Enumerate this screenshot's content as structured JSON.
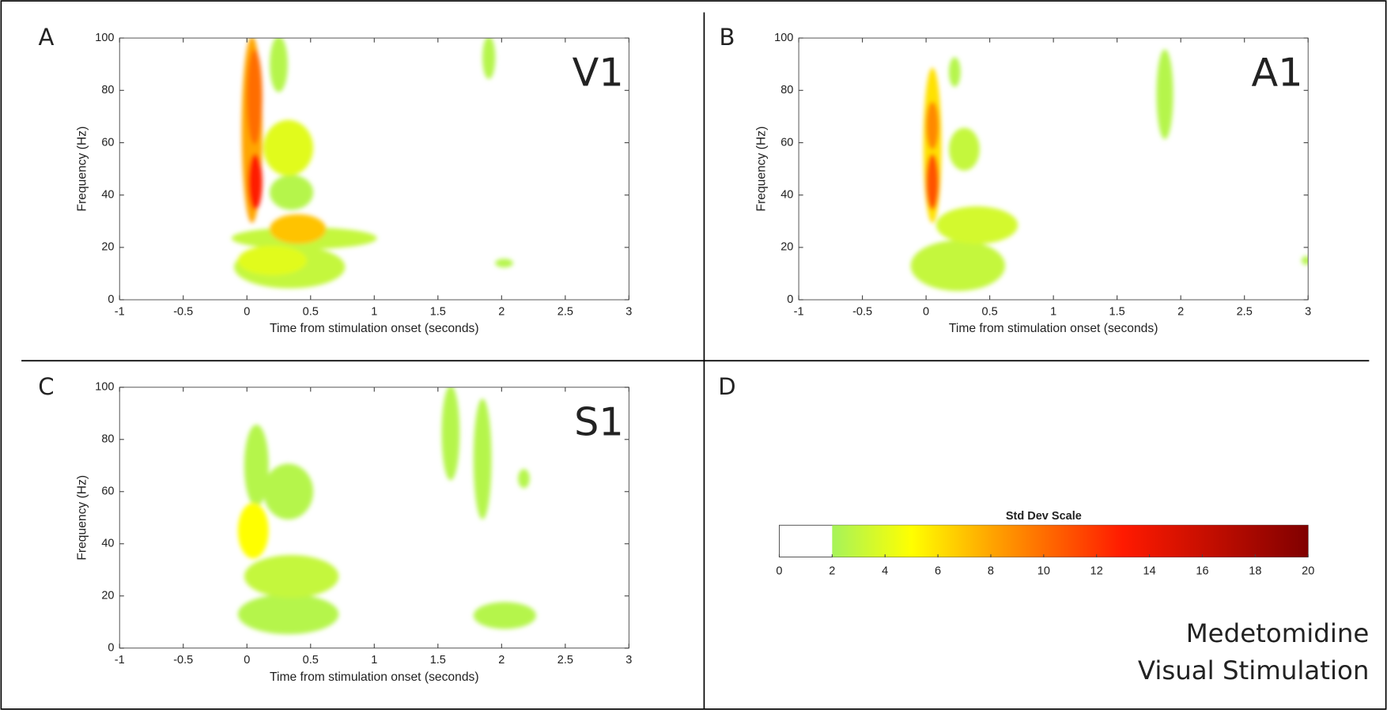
{
  "figure": {
    "note_lines": [
      "Medetomidine",
      "Visual Stimulation"
    ]
  },
  "colormap": [
    {
      "value": 2,
      "color": "#a6f35a"
    },
    {
      "value": 5,
      "color": "#ffff00"
    },
    {
      "value": 8,
      "color": "#ffa500"
    },
    {
      "value": 13,
      "color": "#ff1a00"
    },
    {
      "value": 20,
      "color": "#800000"
    }
  ],
  "chart_data": [
    {
      "type": "heatmap",
      "panel": "A",
      "region": "V1",
      "x_label": "Time from stimulation onset (seconds)",
      "y_label": "Frequency (Hz)",
      "xlim": [
        -1,
        3
      ],
      "ylim": [
        0,
        100
      ],
      "xticks": [
        -1,
        -0.5,
        0,
        0.5,
        1,
        1.5,
        2,
        2.5,
        3
      ],
      "yticks": [
        0,
        20,
        40,
        60,
        80,
        100
      ],
      "cells": [
        {
          "x": [
            -0.08,
            0.75
          ],
          "y": [
            5,
            20
          ],
          "value": 3
        },
        {
          "x": [
            -0.1,
            1.0
          ],
          "y": [
            20,
            27
          ],
          "value": 3
        },
        {
          "x": [
            0.2,
            0.5
          ],
          "y": [
            35,
            47
          ],
          "value": 2.5
        },
        {
          "x": [
            0.2,
            0.3
          ],
          "y": [
            80,
            100
          ],
          "value": 2.5
        },
        {
          "x": [
            1.87,
            1.93
          ],
          "y": [
            85,
            100
          ],
          "value": 2.5
        },
        {
          "x": [
            1.97,
            2.07
          ],
          "y": [
            13,
            15
          ],
          "value": 2.5
        },
        {
          "x": [
            -0.05,
            0.45
          ],
          "y": [
            10,
            20
          ],
          "value": 4
        },
        {
          "x": [
            0.15,
            0.5
          ],
          "y": [
            48,
            68
          ],
          "value": 4
        },
        {
          "x": [
            0.2,
            0.6
          ],
          "y": [
            22,
            32
          ],
          "value": 7
        },
        {
          "x": [
            -0.02,
            0.1
          ],
          "y": [
            30,
            100
          ],
          "value": 8
        },
        {
          "x": [
            0.02,
            0.1
          ],
          "y": [
            60,
            95
          ],
          "value": 10
        },
        {
          "x": [
            0.03,
            0.1
          ],
          "y": [
            35,
            55
          ],
          "value": 13
        }
      ]
    },
    {
      "type": "heatmap",
      "panel": "B",
      "region": "A1",
      "x_label": "Time from stimulation onset (seconds)",
      "y_label": "Frequency (Hz)",
      "xlim": [
        -1,
        3
      ],
      "ylim": [
        0,
        100
      ],
      "xticks": [
        -1,
        -0.5,
        0,
        0.5,
        1,
        1.5,
        2,
        2.5,
        3
      ],
      "yticks": [
        0,
        20,
        40,
        60,
        80,
        100
      ],
      "cells": [
        {
          "x": [
            -0.1,
            0.6
          ],
          "y": [
            4,
            22
          ],
          "value": 3
        },
        {
          "x": [
            0.1,
            0.7
          ],
          "y": [
            22,
            35
          ],
          "value": 3.5
        },
        {
          "x": [
            0.2,
            0.4
          ],
          "y": [
            50,
            65
          ],
          "value": 3
        },
        {
          "x": [
            0.2,
            0.25
          ],
          "y": [
            82,
            92
          ],
          "value": 2.5
        },
        {
          "x": [
            1.83,
            1.92
          ],
          "y": [
            62,
            95
          ],
          "value": 2.5
        },
        {
          "x": [
            2.97,
            3
          ],
          "y": [
            14,
            16
          ],
          "value": 2.5
        },
        {
          "x": [
            0,
            0.1
          ],
          "y": [
            30,
            88
          ],
          "value": 6
        },
        {
          "x": [
            0.02,
            0.08
          ],
          "y": [
            58,
            75
          ],
          "value": 9
        },
        {
          "x": [
            0.02,
            0.08
          ],
          "y": [
            35,
            55
          ],
          "value": 11
        }
      ]
    },
    {
      "type": "heatmap",
      "panel": "C",
      "region": "S1",
      "x_label": "Time from stimulation onset (seconds)",
      "y_label": "Frequency (Hz)",
      "xlim": [
        -1,
        3
      ],
      "ylim": [
        0,
        100
      ],
      "xticks": [
        -1,
        -0.5,
        0,
        0.5,
        1,
        1.5,
        2,
        2.5,
        3
      ],
      "yticks": [
        0,
        20,
        40,
        60,
        80,
        100
      ],
      "cells": [
        {
          "x": [
            -0.05,
            0.7
          ],
          "y": [
            6,
            20
          ],
          "value": 2.5
        },
        {
          "x": [
            0,
            0.7
          ],
          "y": [
            20,
            35
          ],
          "value": 3
        },
        {
          "x": [
            0,
            0.15
          ],
          "y": [
            55,
            85
          ],
          "value": 2.5
        },
        {
          "x": [
            0.15,
            0.5
          ],
          "y": [
            50,
            70
          ],
          "value": 2.5
        },
        {
          "x": [
            1.55,
            1.65
          ],
          "y": [
            65,
            100
          ],
          "value": 2.5
        },
        {
          "x": [
            1.8,
            1.9
          ],
          "y": [
            50,
            95
          ],
          "value": 2.5
        },
        {
          "x": [
            2.15,
            2.2
          ],
          "y": [
            62,
            68
          ],
          "value": 2.5
        },
        {
          "x": [
            1.8,
            2.25
          ],
          "y": [
            8,
            17
          ],
          "value": 2.5
        },
        {
          "x": [
            -0.05,
            0.15
          ],
          "y": [
            35,
            55
          ],
          "value": 5
        }
      ]
    },
    {
      "type": "colorbar",
      "panel": "D",
      "title": "Std Dev Scale",
      "range": [
        2,
        20
      ],
      "xlim": [
        0,
        20
      ],
      "xticks": [
        0,
        2,
        4,
        6,
        8,
        10,
        12,
        14,
        16,
        18,
        20
      ]
    }
  ]
}
